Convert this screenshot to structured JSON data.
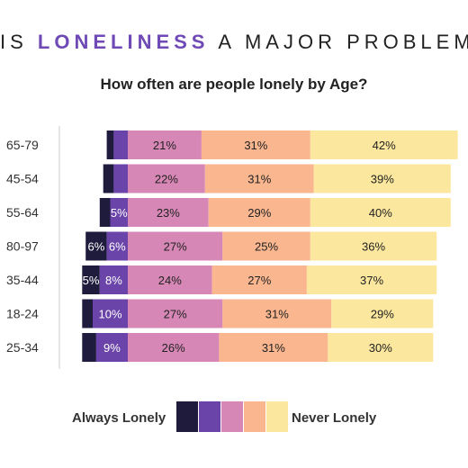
{
  "header": {
    "title_pre": "IS ",
    "title_highlight": "LONELINESS",
    "title_post": " A MAJOR PROBLEM?",
    "subtitle": "How often are people lonely by Age?"
  },
  "colors": [
    "#1f1b3d",
    "#6a44a8",
    "#d787b5",
    "#f9b68f",
    "#fbe79d"
  ],
  "legend": {
    "left_label": "Always Lonely",
    "right_label": "Never Lonely"
  },
  "chart_data": {
    "type": "bar",
    "orientation": "horizontal",
    "stacked": true,
    "diverging": true,
    "categories": [
      "65-79",
      "45-54",
      "55-64",
      "80-97",
      "35-44",
      "18-24",
      "25-34"
    ],
    "series": [
      {
        "values": [
          2,
          3,
          3,
          6,
          5,
          3,
          4
        ],
        "labels": [
          "",
          "",
          "",
          "6%",
          "5%",
          "",
          ""
        ]
      },
      {
        "values": [
          4,
          4,
          5,
          6,
          8,
          10,
          9
        ],
        "labels": [
          "",
          "",
          "5%",
          "6%",
          "8%",
          "10%",
          "9%"
        ]
      },
      {
        "values": [
          21,
          22,
          23,
          27,
          24,
          27,
          26
        ],
        "labels": [
          "21%",
          "22%",
          "23%",
          "27%",
          "24%",
          "27%",
          "26%"
        ]
      },
      {
        "values": [
          31,
          31,
          29,
          25,
          27,
          31,
          31
        ],
        "labels": [
          "31%",
          "31%",
          "29%",
          "25%",
          "27%",
          "31%",
          "31%"
        ]
      },
      {
        "values": [
          42,
          39,
          40,
          36,
          37,
          29,
          30
        ],
        "labels": [
          "42%",
          "39%",
          "40%",
          "36%",
          "37%",
          "29%",
          "30%"
        ]
      }
    ]
  }
}
